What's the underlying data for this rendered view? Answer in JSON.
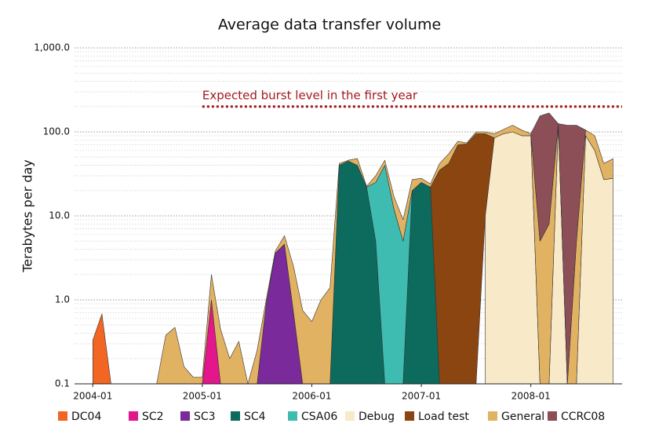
{
  "chart_data": {
    "type": "stacked-area",
    "title": "Average data transfer volume",
    "y_label": "Terabytes per day",
    "log_y": true,
    "grid": true,
    "xlim": [
      "2003-11",
      "2008-11"
    ],
    "xticks": [
      "2004-01",
      "2005-01",
      "2006-01",
      "2007-01",
      "2008-01"
    ],
    "ylim": [
      0.1,
      1000
    ],
    "yticks": [
      0.1,
      {
        "value": 1,
        "label": "1.0"
      },
      {
        "value": 10,
        "label": "10.0"
      },
      {
        "value": 100,
        "label": "100.0"
      },
      {
        "value": 1000,
        "label": "1,000.0"
      }
    ],
    "yminorticks": [
      0.2,
      0.3,
      0.4,
      0.5,
      0.6,
      0.7,
      0.8,
      0.9,
      2,
      3,
      4,
      5,
      6,
      7,
      8,
      9,
      20,
      30,
      40,
      50,
      60,
      70,
      80,
      90,
      200,
      300,
      400,
      500,
      600,
      700,
      800,
      900
    ],
    "reference_line": {
      "value": 200,
      "label": "Expected burst level in the first year",
      "color": "#a3171b",
      "x_start": "2005-01"
    },
    "series": [
      {
        "name": "DC04",
        "color": "#f26522",
        "x": [
          "2004-01",
          "2004-02",
          "2004-03"
        ],
        "values": [
          0.33,
          0.68,
          0
        ]
      },
      {
        "name": "SC2",
        "color": "#e3168c",
        "x": [
          "2005-01",
          "2005-02",
          "2005-03"
        ],
        "values": [
          0,
          1.0,
          0
        ]
      },
      {
        "name": "SC3",
        "color": "#7a2a9a",
        "x": [
          "2005-07",
          "2005-08",
          "2005-09",
          "2005-10",
          "2005-11",
          "2005-12"
        ],
        "values": [
          0,
          0.9,
          3.6,
          4.6,
          0.7,
          0
        ]
      },
      {
        "name": "SC4",
        "color": "#0c6b5d",
        "x": [
          "2006-03",
          "2006-04",
          "2006-05",
          "2006-06",
          "2006-07",
          "2006-08",
          "2006-09",
          "2006-10",
          "2006-11",
          "2006-12",
          "2007-01",
          "2007-02",
          "2007-03"
        ],
        "values": [
          0,
          40,
          45,
          40,
          22,
          5,
          0,
          0,
          0,
          20,
          25,
          22,
          0
        ]
      },
      {
        "name": "CSA06",
        "color": "#3fbcb1",
        "x": [
          "2006-07",
          "2006-08",
          "2006-09",
          "2006-10",
          "2006-11",
          "2006-12"
        ],
        "values": [
          0,
          20,
          40,
          12,
          5,
          0
        ]
      },
      {
        "name": "Debug",
        "color": "#f8e9c9",
        "x": [
          "2007-08",
          "2007-09",
          "2007-10",
          "2007-11",
          "2007-12",
          "2008-01",
          "2008-02",
          "2008-03",
          "2008-04",
          "2008-05",
          "2008-06",
          "2008-07",
          "2008-08",
          "2008-09",
          "2008-10"
        ],
        "values": [
          10,
          85,
          95,
          100,
          90,
          90,
          0,
          0,
          120,
          0,
          0,
          90,
          60,
          27,
          28
        ]
      },
      {
        "name": "Load test",
        "color": "#8b4511",
        "x": [
          "2007-02",
          "2007-03",
          "2007-04",
          "2007-05",
          "2007-06",
          "2007-07",
          "2007-08",
          "2007-09"
        ],
        "values": [
          0,
          35,
          42,
          70,
          72,
          95,
          85,
          0
        ]
      },
      {
        "name": "General",
        "color": "#e2b263",
        "x": [
          "2004-08",
          "2004-09",
          "2004-10",
          "2004-11",
          "2004-12",
          "2005-01",
          "2005-02",
          "2005-03",
          "2005-04",
          "2005-05",
          "2005-06",
          "2005-07",
          "2005-08",
          "2005-09",
          "2005-10",
          "2005-11",
          "2005-12",
          "2006-01",
          "2006-02",
          "2006-03",
          "2006-04",
          "2006-05",
          "2006-06",
          "2006-07",
          "2006-08",
          "2006-09",
          "2006-10",
          "2006-11",
          "2006-12",
          "2007-01",
          "2007-02",
          "2007-03",
          "2007-04",
          "2007-05",
          "2007-06",
          "2007-07",
          "2007-08",
          "2007-09",
          "2007-10",
          "2007-11",
          "2007-12",
          "2008-01",
          "2008-02",
          "2008-03",
          "2008-04",
          "2008-05",
          "2008-06",
          "2008-07",
          "2008-08",
          "2008-09",
          "2008-10"
        ],
        "values": [
          0,
          0.38,
          0.47,
          0.16,
          0.12,
          0.12,
          1.0,
          0.45,
          0.2,
          0.32,
          0.1,
          0.25,
          0.1,
          0.2,
          1.2,
          1.8,
          0.75,
          0.55,
          1.0,
          1.4,
          2,
          1,
          8,
          0.5,
          5,
          6,
          5,
          4,
          7,
          3,
          2,
          7,
          13,
          7,
          2,
          5,
          5,
          10,
          12,
          20,
          15,
          5,
          5,
          8,
          5,
          0,
          5,
          15,
          30,
          15,
          20
        ]
      },
      {
        "name": "CCRC08",
        "color": "#8c4f57",
        "x": [
          "2008-01",
          "2008-02",
          "2008-03",
          "2008-04",
          "2008-05",
          "2008-06",
          "2008-07"
        ],
        "values": [
          0,
          150,
          160,
          0,
          120,
          115,
          0
        ]
      }
    ]
  }
}
